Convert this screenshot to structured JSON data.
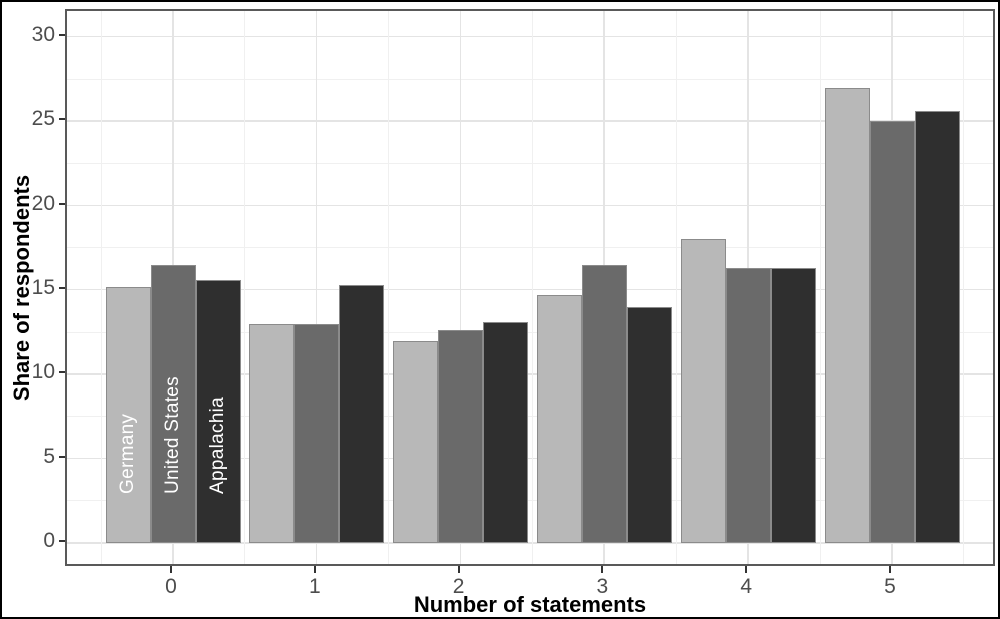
{
  "figure": {
    "background": "#ffffff",
    "border_color": "#000000"
  },
  "chart_data": {
    "type": "bar",
    "title": "",
    "xlabel": "Number of statements",
    "ylabel": "Share of respondents",
    "categories": [
      "0",
      "1",
      "2",
      "3",
      "4",
      "5"
    ],
    "series": [
      {
        "name": "Germany",
        "color": "#b8b8b8",
        "values": [
          15.2,
          13.0,
          12.0,
          14.7,
          18.0,
          27.0
        ]
      },
      {
        "name": "United States",
        "color": "#6a6a6a",
        "values": [
          16.5,
          13.0,
          12.6,
          16.5,
          16.3,
          25.0
        ]
      },
      {
        "name": "Appalachia",
        "color": "#2f2f2f",
        "values": [
          15.6,
          15.3,
          13.1,
          14.0,
          16.3,
          25.6
        ]
      }
    ],
    "series_labels_inside_first_group": true,
    "bar_label_color": "#ffffff",
    "ylim": [
      0,
      30
    ],
    "y_major_ticks": [
      0,
      5,
      10,
      15,
      20,
      25,
      30
    ],
    "y_minor_ticks": [
      2.5,
      7.5,
      12.5,
      17.5,
      22.5,
      27.5
    ],
    "grid": true,
    "legend_position": "none",
    "style": {
      "grid_major_color": "#e4e4e4",
      "grid_minor_color": "#f0f0f0",
      "panel_border_color": "#595959",
      "tick_mark_color": "#333333",
      "tick_label_color": "#4d4d4d",
      "axis_title_color": "#000000"
    }
  }
}
